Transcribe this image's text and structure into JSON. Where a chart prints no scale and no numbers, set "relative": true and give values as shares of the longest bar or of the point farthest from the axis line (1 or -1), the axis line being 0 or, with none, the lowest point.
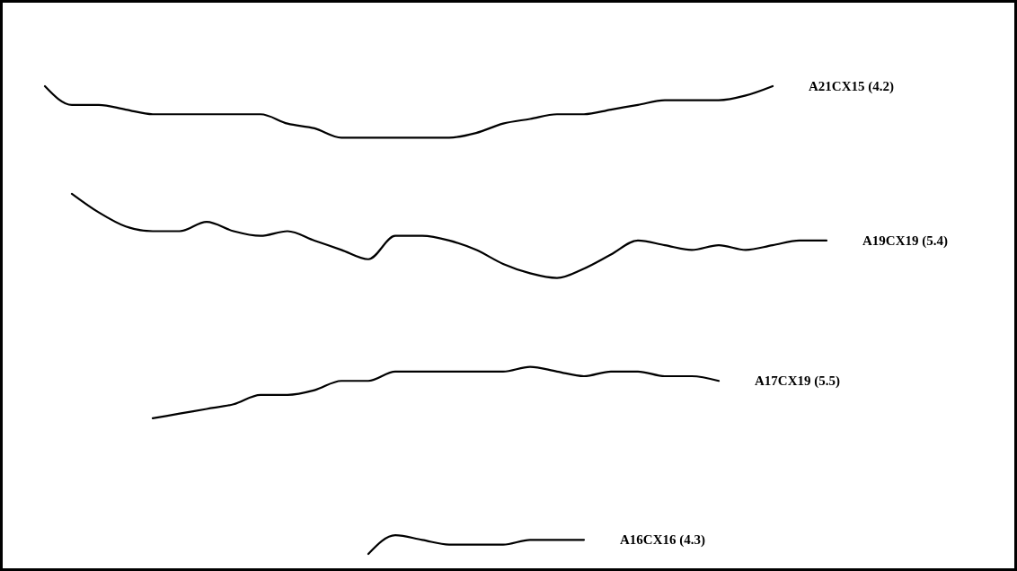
{
  "chart_data": {
    "type": "line",
    "relative": true,
    "marker": "none",
    "line_style": "solid",
    "legend": false,
    "grid": false,
    "categories": [
      null,
      null,
      null,
      null,
      null,
      null,
      null,
      null,
      null,
      null,
      null,
      null,
      null,
      null,
      null,
      null,
      null,
      null,
      null,
      null,
      null,
      null,
      null,
      null,
      null,
      null,
      null,
      null,
      null,
      null
    ],
    "series": [
      {
        "name": "A21CX15 (4.2)",
        "color": "#000000",
        "values": [
          1.0,
          0.96,
          0.96,
          0.95,
          0.94,
          0.94,
          0.94,
          0.94,
          0.94,
          0.92,
          0.91,
          0.89,
          0.89,
          0.89,
          0.89,
          0.89,
          0.9,
          0.92,
          0.93,
          0.94,
          0.94,
          0.95,
          0.96,
          0.97,
          0.97,
          0.97,
          0.98,
          1.0,
          null,
          null
        ]
      },
      {
        "name": "A19CX19 (5.4)",
        "color": "#000000",
        "values": [
          null,
          0.77,
          0.73,
          0.7,
          0.69,
          0.69,
          0.71,
          0.69,
          0.68,
          0.69,
          0.67,
          0.65,
          0.63,
          0.68,
          0.68,
          0.67,
          0.65,
          0.62,
          0.6,
          0.59,
          0.61,
          0.64,
          0.67,
          0.66,
          0.65,
          0.66,
          0.65,
          0.66,
          0.67,
          0.67
        ]
      },
      {
        "name": "A17CX19 (5.5)",
        "color": "#000000",
        "values": [
          null,
          null,
          null,
          null,
          0.29,
          0.3,
          0.31,
          0.32,
          0.34,
          0.34,
          0.35,
          0.37,
          0.37,
          0.39,
          0.39,
          0.39,
          0.39,
          0.39,
          0.4,
          0.39,
          0.38,
          0.39,
          0.39,
          0.38,
          0.38,
          0.37,
          null,
          null,
          null,
          null
        ]
      },
      {
        "name": "A16CX16 (4.3)",
        "color": "#000000",
        "values": [
          null,
          null,
          null,
          null,
          null,
          null,
          null,
          null,
          null,
          null,
          null,
          null,
          0.0,
          0.04,
          0.03,
          0.02,
          0.02,
          0.02,
          0.03,
          0.03,
          0.03,
          null,
          null,
          null,
          null,
          null,
          null,
          null,
          null,
          null
        ]
      }
    ]
  }
}
